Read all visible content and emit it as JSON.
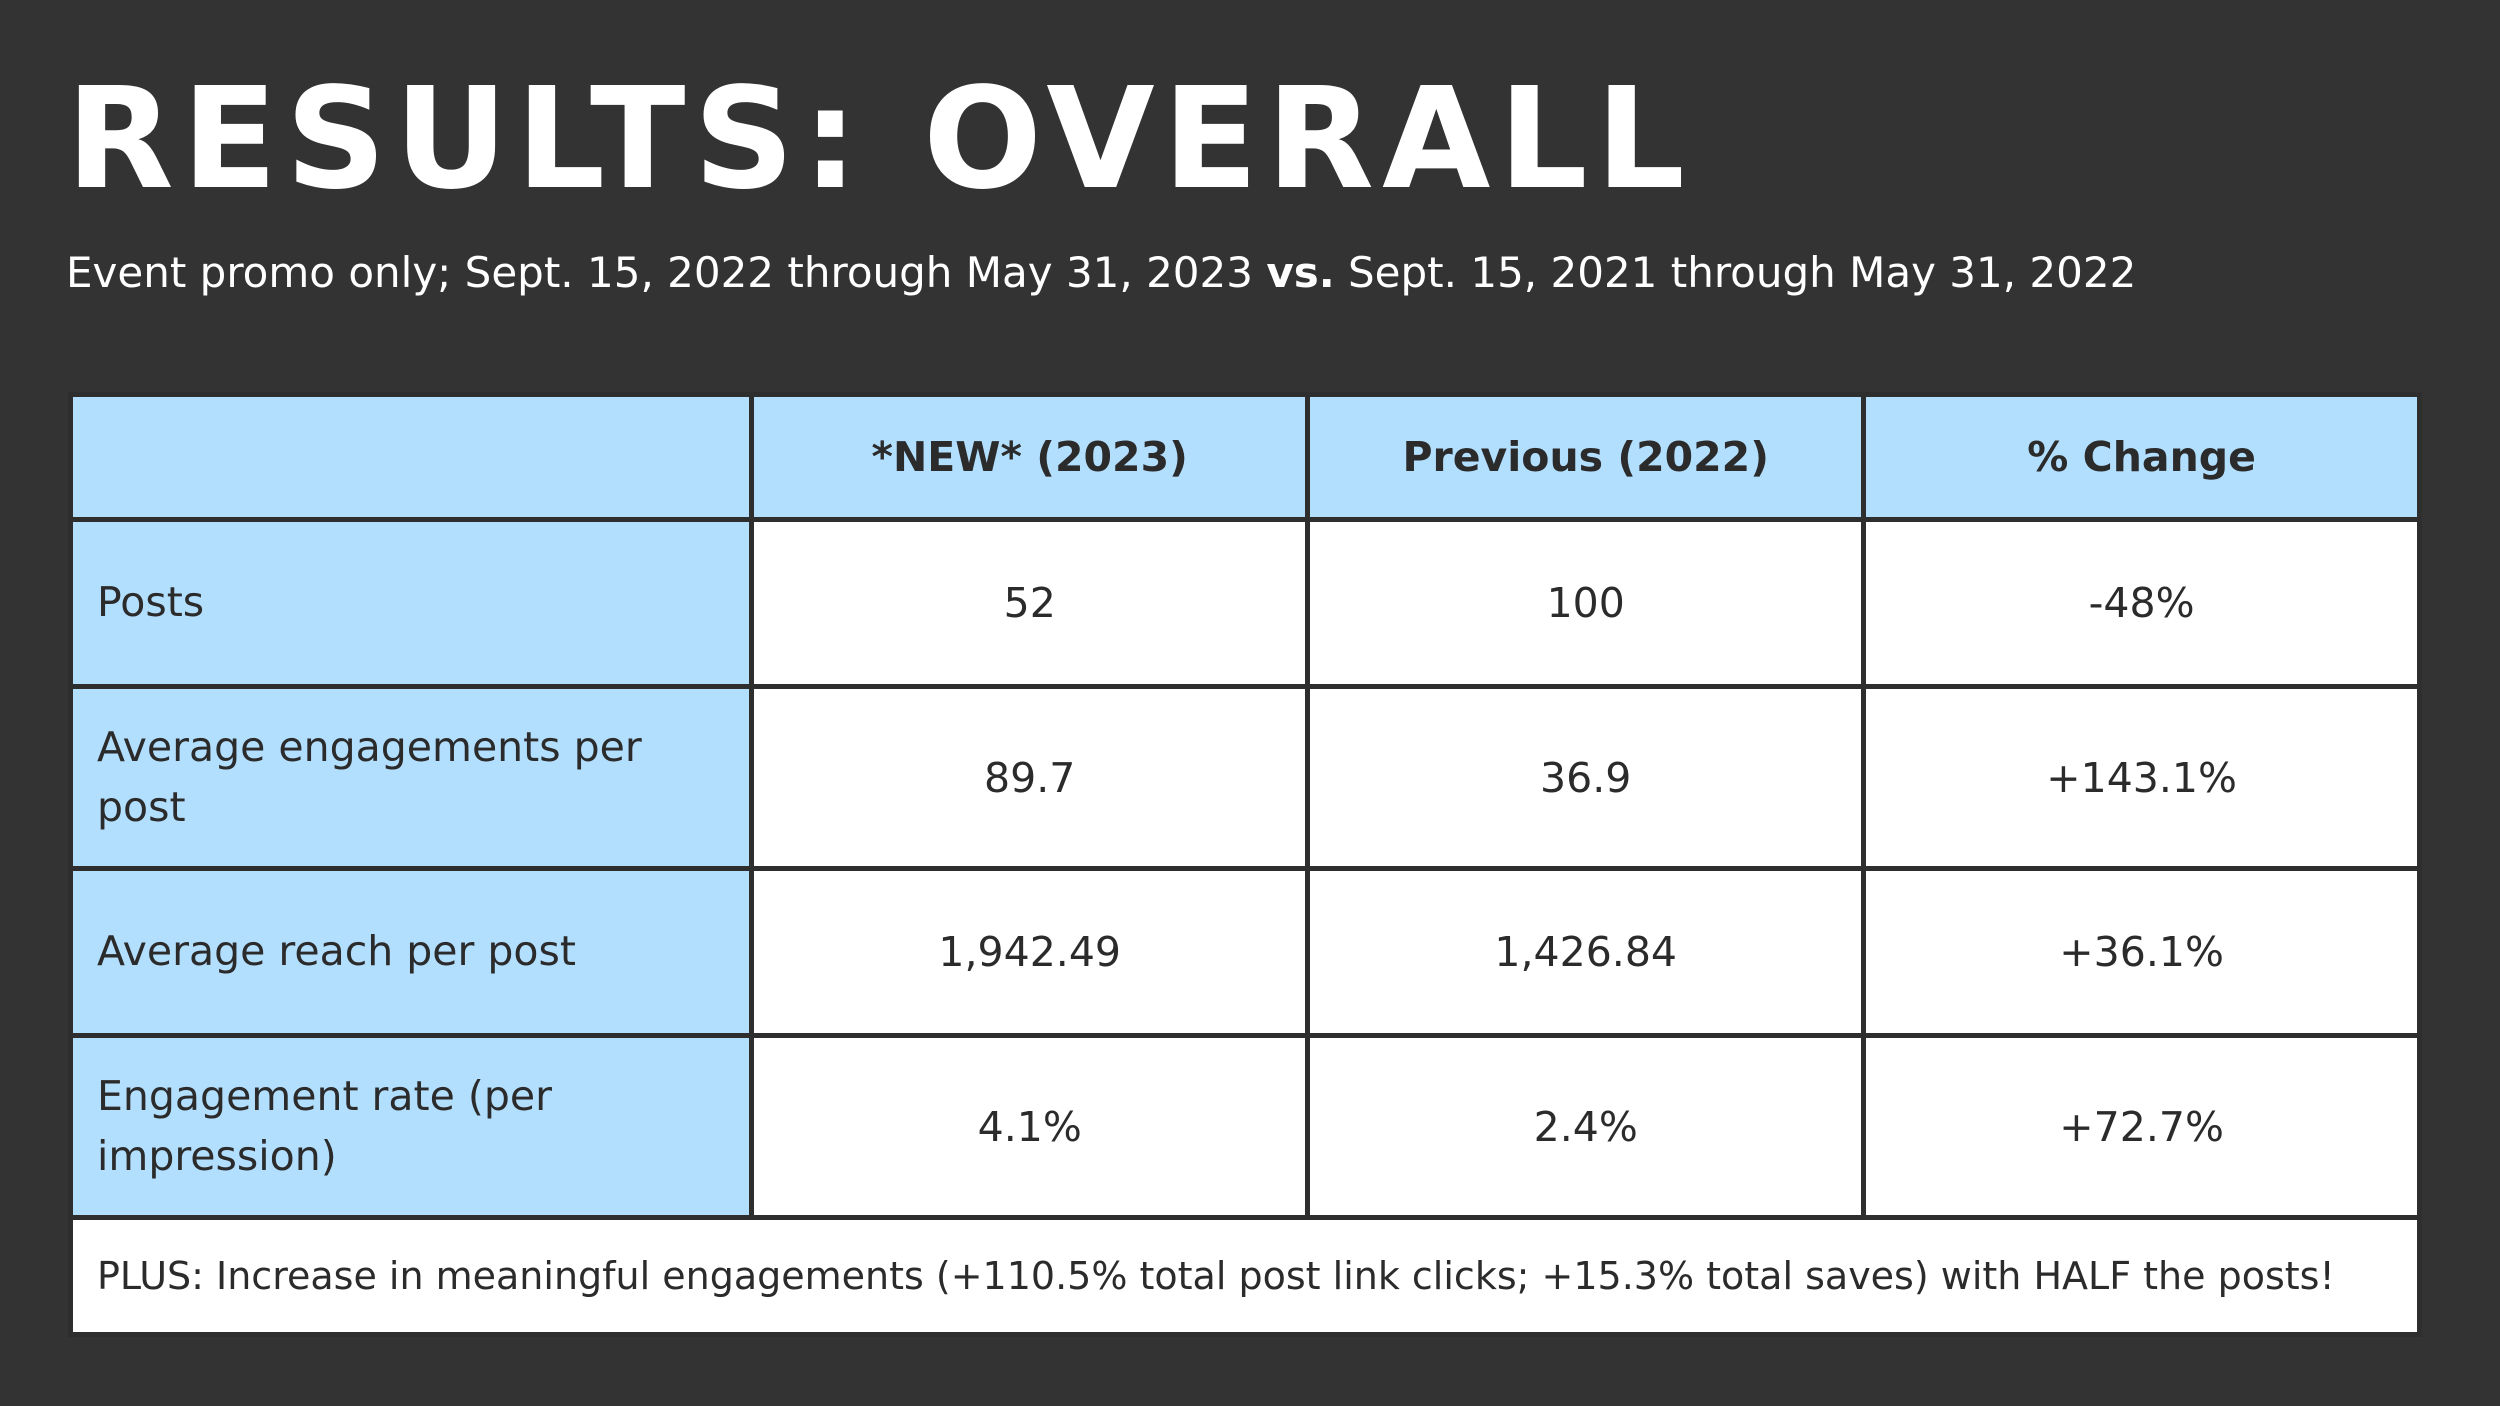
{
  "title": "RESULTS: OVERALL",
  "subtitle": {
    "part1": "Event promo only; Sept. 15, 2022 through May 31, 2023 ",
    "vs": "vs.",
    "part2": " Sept. 15, 2021 through May 31, 2022"
  },
  "table": {
    "headers": [
      "",
      "*NEW* (2023)",
      "Previous (2022)",
      "% Change"
    ],
    "rows": [
      {
        "label": "Posts",
        "new": "52",
        "previous": "100",
        "change": "-48%"
      },
      {
        "label": "Average engagements per post",
        "new": "89.7",
        "previous": "36.9",
        "change": "+143.1%"
      },
      {
        "label": "Average reach per post",
        "new": "1,942.49",
        "previous": "1,426.84",
        "change": "+36.1%"
      },
      {
        "label": "Engagement rate (per impression)",
        "new": "4.1%",
        "previous": "2.4%",
        "change": "+72.7%"
      }
    ],
    "note": "PLUS: Increase in meaningful engagements (+110.5% total post link clicks; +15.3% total saves) with HALF the posts!"
  },
  "colors": {
    "background": "#333333",
    "header_fill": "#b3dfff",
    "cell_fill": "#ffffff",
    "title_text": "#ffffff"
  }
}
